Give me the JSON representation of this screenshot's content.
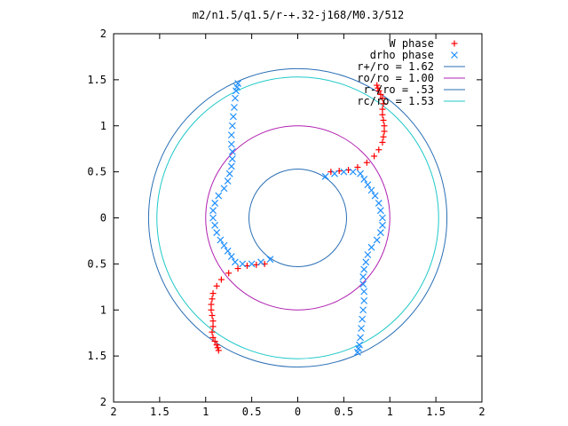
{
  "chart_data": {
    "type": "scatter",
    "title": "m2/n1.5/q1.5/r-+.32-j168/M0.3/512",
    "xlabel": "",
    "ylabel": "",
    "xlim": [
      -2,
      2
    ],
    "ylim": [
      -2,
      2
    ],
    "grid": false,
    "legend_position": "top-right",
    "x_ticks": [
      {
        "value": -2,
        "label": "2"
      },
      {
        "value": -1.5,
        "label": "1.5"
      },
      {
        "value": -1,
        "label": "1"
      },
      {
        "value": -0.5,
        "label": "0.5"
      },
      {
        "value": 0,
        "label": "0"
      },
      {
        "value": 0.5,
        "label": "0.5"
      },
      {
        "value": 1,
        "label": "1"
      },
      {
        "value": 1.5,
        "label": "1.5"
      },
      {
        "value": 2,
        "label": "2"
      }
    ],
    "y_ticks": [
      {
        "value": 2,
        "label": "2"
      },
      {
        "value": 1.5,
        "label": "1.5"
      },
      {
        "value": 1,
        "label": "1"
      },
      {
        "value": 0.5,
        "label": "0.5"
      },
      {
        "value": 0,
        "label": "0"
      },
      {
        "value": -0.5,
        "label": "0.5"
      },
      {
        "value": -1,
        "label": "1"
      },
      {
        "value": -1.5,
        "label": "1.5"
      },
      {
        "value": -2,
        "label": "2"
      }
    ],
    "circles": [
      {
        "name": "r+/ro = 1.62",
        "radius": 1.62,
        "color": "#2a6fb5"
      },
      {
        "name": "ro/ro = 1.00",
        "radius": 1.0,
        "color": "#b020b0"
      },
      {
        "name": "r-/ro = .53",
        "radius": 0.53,
        "color": "#2a6fb5"
      },
      {
        "name": "rc/ro = 1.53",
        "radius": 1.53,
        "color": "#20c8c8"
      }
    ],
    "series": [
      {
        "name": "W phase",
        "marker": "plus",
        "color": "#ff0000",
        "x": [
          0.36,
          0.45,
          0.55,
          0.65,
          0.75,
          0.83,
          0.88,
          0.92,
          0.93,
          0.94,
          0.94,
          0.93,
          0.92,
          0.92,
          0.93,
          0.92,
          0.9,
          0.88,
          0.87,
          0.86,
          -0.36,
          -0.45,
          -0.55,
          -0.65,
          -0.75,
          -0.83,
          -0.88,
          -0.92,
          -0.93,
          -0.94,
          -0.94,
          -0.93,
          -0.92,
          -0.92,
          -0.93,
          -0.92,
          -0.9,
          -0.88,
          -0.87,
          -0.86
        ],
        "y": [
          0.5,
          0.51,
          0.52,
          0.55,
          0.6,
          0.67,
          0.74,
          0.82,
          0.88,
          0.94,
          1.0,
          1.06,
          1.12,
          1.18,
          1.24,
          1.3,
          1.34,
          1.38,
          1.41,
          1.44,
          -0.5,
          -0.51,
          -0.52,
          -0.55,
          -0.6,
          -0.67,
          -0.74,
          -0.82,
          -0.88,
          -0.94,
          -1.0,
          -1.06,
          -1.12,
          -1.18,
          -1.24,
          -1.3,
          -1.34,
          -1.38,
          -1.41,
          -1.44
        ]
      },
      {
        "name": "drho phase",
        "marker": "cross",
        "color": "#1e8fff",
        "x": [
          0.3,
          0.4,
          0.5,
          0.6,
          0.68,
          0.72,
          0.76,
          0.8,
          0.84,
          0.88,
          0.9,
          0.92,
          0.92,
          0.9,
          0.86,
          0.8,
          0.76,
          0.74,
          0.72,
          0.71,
          0.71,
          0.72,
          0.72,
          0.71,
          0.7,
          0.69,
          0.68,
          0.67,
          0.66,
          0.65,
          -0.3,
          -0.4,
          -0.5,
          -0.6,
          -0.68,
          -0.72,
          -0.76,
          -0.8,
          -0.84,
          -0.88,
          -0.9,
          -0.92,
          -0.92,
          -0.9,
          -0.86,
          -0.8,
          -0.76,
          -0.74,
          -0.72,
          -0.71,
          -0.71,
          -0.72,
          -0.72,
          -0.71,
          -0.7,
          -0.69,
          -0.68,
          -0.67,
          -0.66,
          -0.65
        ],
        "y": [
          0.45,
          0.48,
          0.5,
          0.5,
          0.48,
          0.42,
          0.36,
          0.3,
          0.24,
          0.16,
          0.08,
          0.0,
          -0.08,
          -0.16,
          -0.24,
          -0.32,
          -0.4,
          -0.48,
          -0.56,
          -0.64,
          -0.72,
          -0.8,
          -0.9,
          -1.0,
          -1.1,
          -1.2,
          -1.3,
          -1.38,
          -1.42,
          -1.46,
          -0.45,
          -0.48,
          -0.5,
          -0.5,
          -0.48,
          -0.42,
          -0.36,
          -0.3,
          -0.24,
          -0.16,
          -0.08,
          0.0,
          0.08,
          0.16,
          0.24,
          0.32,
          0.4,
          0.48,
          0.56,
          0.64,
          0.72,
          0.8,
          0.9,
          1.0,
          1.1,
          1.2,
          1.3,
          1.38,
          1.42,
          1.46
        ]
      }
    ]
  }
}
